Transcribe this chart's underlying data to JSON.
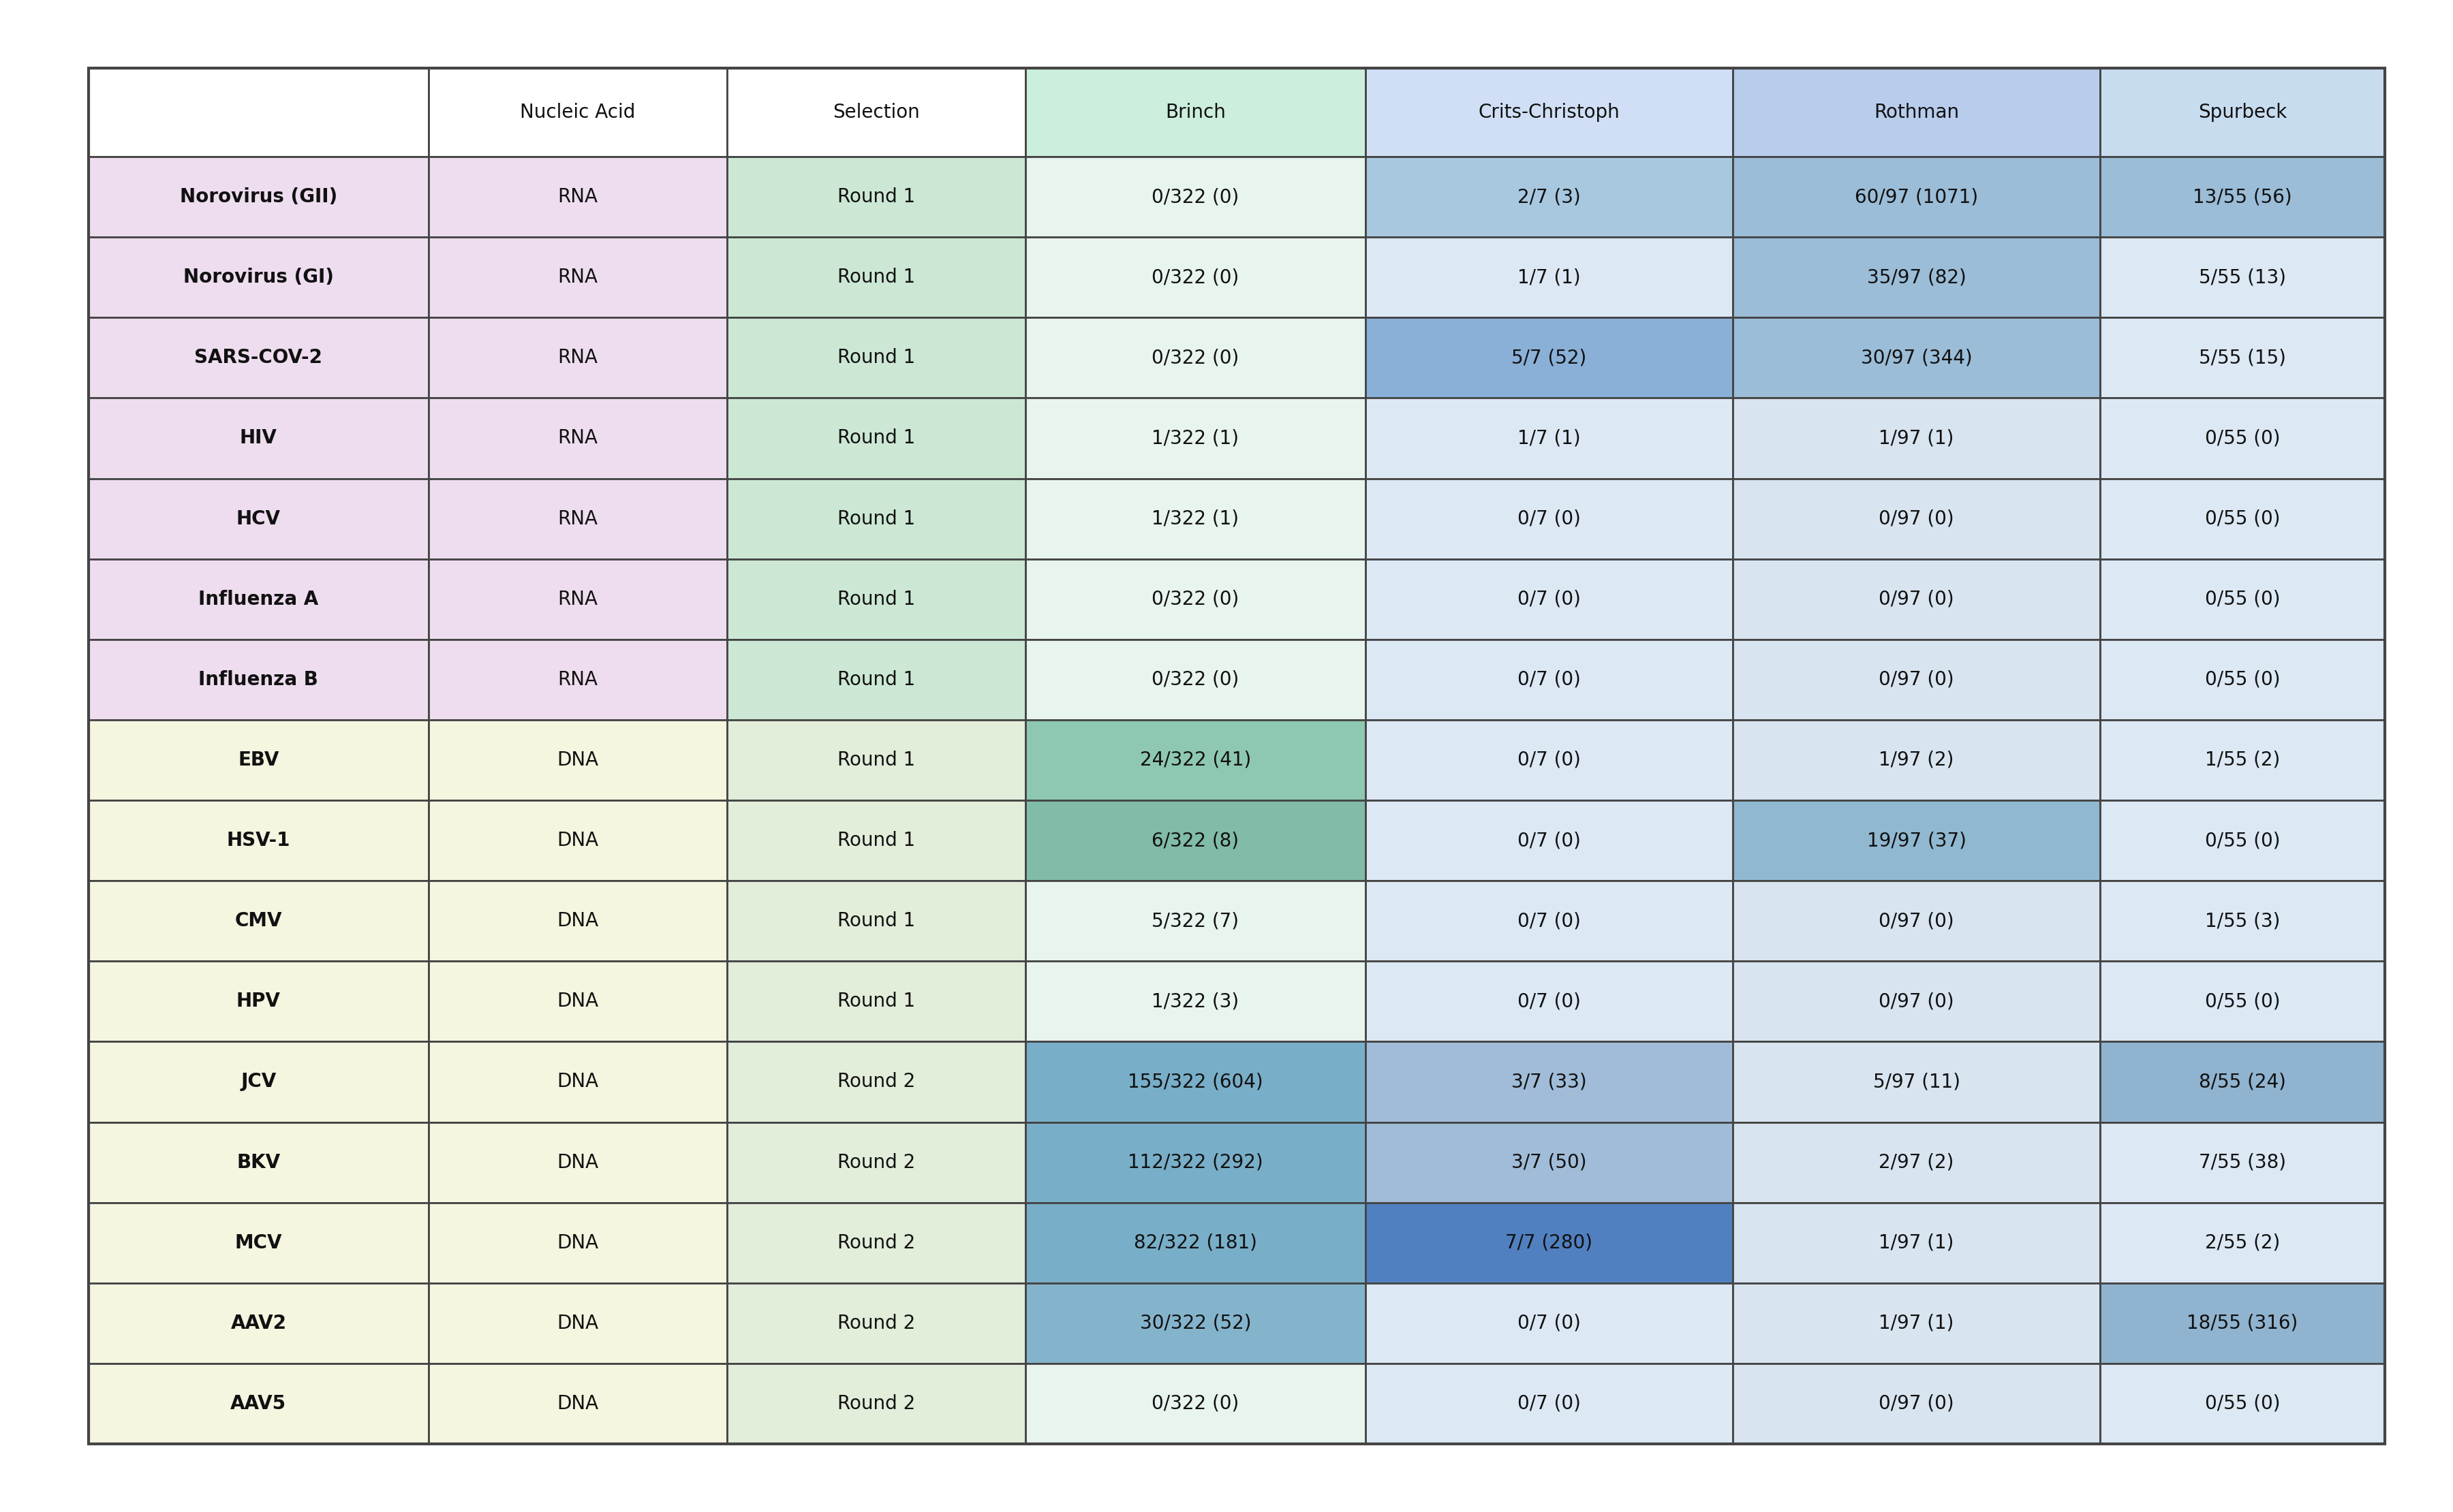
{
  "headers": [
    "",
    "Nucleic Acid",
    "Selection",
    "Brinch",
    "Crits-Christoph",
    "Rothman",
    "Spurbeck"
  ],
  "rows": [
    [
      "Norovirus (GII)",
      "RNA",
      "Round 1",
      "0/322 (0)",
      "2/7 (3)",
      "60/97 (1071)",
      "13/55 (56)"
    ],
    [
      "Norovirus (GI)",
      "RNA",
      "Round 1",
      "0/322 (0)",
      "1/7 (1)",
      "35/97 (82)",
      "5/55 (13)"
    ],
    [
      "SARS-COV-2",
      "RNA",
      "Round 1",
      "0/322 (0)",
      "5/7 (52)",
      "30/97 (344)",
      "5/55 (15)"
    ],
    [
      "HIV",
      "RNA",
      "Round 1",
      "1/322 (1)",
      "1/7 (1)",
      "1/97 (1)",
      "0/55 (0)"
    ],
    [
      "HCV",
      "RNA",
      "Round 1",
      "1/322 (1)",
      "0/7 (0)",
      "0/97 (0)",
      "0/55 (0)"
    ],
    [
      "Influenza A",
      "RNA",
      "Round 1",
      "0/322 (0)",
      "0/7 (0)",
      "0/97 (0)",
      "0/55 (0)"
    ],
    [
      "Influenza B",
      "RNA",
      "Round 1",
      "0/322 (0)",
      "0/7 (0)",
      "0/97 (0)",
      "0/55 (0)"
    ],
    [
      "EBV",
      "DNA",
      "Round 1",
      "24/322 (41)",
      "0/7 (0)",
      "1/97 (2)",
      "1/55 (2)"
    ],
    [
      "HSV-1",
      "DNA",
      "Round 1",
      "6/322 (8)",
      "0/7 (0)",
      "19/97 (37)",
      "0/55 (0)"
    ],
    [
      "CMV",
      "DNA",
      "Round 1",
      "5/322 (7)",
      "0/7 (0)",
      "0/97 (0)",
      "1/55 (3)"
    ],
    [
      "HPV",
      "DNA",
      "Round 1",
      "1/322 (3)",
      "0/7 (0)",
      "0/97 (0)",
      "0/55 (0)"
    ],
    [
      "JCV",
      "DNA",
      "Round 2",
      "155/322 (604)",
      "3/7 (33)",
      "5/97 (11)",
      "8/55 (24)"
    ],
    [
      "BKV",
      "DNA",
      "Round 2",
      "112/322 (292)",
      "3/7 (50)",
      "2/97 (2)",
      "7/55 (38)"
    ],
    [
      "MCV",
      "DNA",
      "Round 2",
      "82/322 (181)",
      "7/7 (280)",
      "1/97 (1)",
      "2/55 (2)"
    ],
    [
      "AAV2",
      "DNA",
      "Round 2",
      "30/322 (52)",
      "0/7 (0)",
      "1/97 (1)",
      "18/55 (316)"
    ],
    [
      "AAV5",
      "DNA",
      "Round 2",
      "0/322 (0)",
      "0/7 (0)",
      "0/97 (0)",
      "0/55 (0)"
    ]
  ],
  "header_bg": [
    "#ffffff",
    "#ffffff",
    "#ffffff",
    "#cceedd",
    "#d0dff5",
    "#b8ccec",
    "#c8dcf0"
  ],
  "rna_col0": "#eeddef",
  "rna_col1": "#eeddef",
  "rna_col2": "#cce8d4",
  "dna_col0": "#f5f5e0",
  "dna_col1": "#f5f5e0",
  "dna_col2": "#e2edda",
  "study_default": [
    "#e8f4ee",
    "#dce8f4",
    "#d8e4f0",
    "#dce8f4"
  ],
  "highlight": {
    "0,4": "#a8c8e0",
    "0,5": "#9bbdd8",
    "0,6": "#9bbdd8",
    "1,5": "#9bbdd8",
    "2,4": "#8ab0d8",
    "2,5": "#9bbdd8",
    "7,3": "#8ec8b0",
    "8,3": "#80bca8",
    "8,5": "#90b8d0",
    "11,3": "#78aec8",
    "11,4": "#a0bcd8",
    "11,6": "#90b4d0",
    "12,3": "#78aec8",
    "12,4": "#a0bcd8",
    "13,3": "#78aec8",
    "13,4": "#5080c0",
    "14,3": "#84b4cc",
    "14,6": "#90b4d0"
  },
  "font_size": 20,
  "header_font_size": 20,
  "border_color": "#444444",
  "text_color": "#111111",
  "background_color": "#ffffff"
}
